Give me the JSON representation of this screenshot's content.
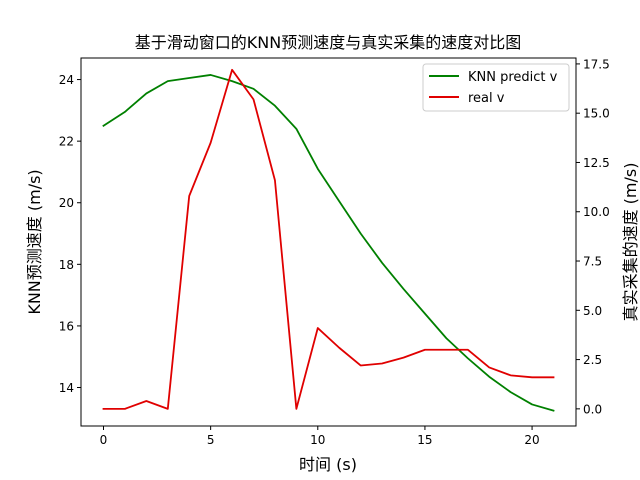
{
  "chart_data": {
    "type": "line",
    "title": "基于滑动窗口的KNN预测速度与真实采集的速度对比图",
    "xlabel": "时间 (s)",
    "ylabel_left": "KNN预测速度 (m/s)",
    "ylabel_right": "真实采集的速度 (m/s)",
    "xlim": [
      -1.05,
      22.05
    ],
    "ylim_left": [
      12.75,
      24.7
    ],
    "ylim_right": [
      -0.87,
      17.8
    ],
    "x_ticks": [
      0,
      5,
      10,
      15,
      20
    ],
    "y_left_ticks": [
      14,
      16,
      18,
      20,
      22,
      24
    ],
    "y_right_ticks": [
      0.0,
      2.5,
      5.0,
      7.5,
      10.0,
      12.5,
      15.0,
      17.5
    ],
    "x_tick_labels": [
      "0",
      "5",
      "10",
      "15",
      "20"
    ],
    "y_left_tick_labels": [
      "14",
      "16",
      "18",
      "20",
      "22",
      "24"
    ],
    "y_right_tick_labels": [
      "0.0",
      "2.5",
      "5.0",
      "7.5",
      "10.0",
      "12.5",
      "15.0",
      "17.5"
    ],
    "grid": false,
    "legend_position": "top-right",
    "x": [
      0,
      1,
      2,
      3,
      4,
      5,
      6,
      7,
      8,
      9,
      10,
      11,
      12,
      13,
      14,
      15,
      16,
      17,
      18,
      19,
      20,
      21
    ],
    "series": [
      {
        "name": "KNN predict v",
        "axis": "left",
        "color": "#008000",
        "values": [
          22.5,
          22.95,
          23.55,
          23.95,
          24.05,
          24.15,
          23.95,
          23.7,
          23.15,
          22.4,
          21.1,
          20.05,
          19.0,
          18.05,
          17.2,
          16.4,
          15.6,
          14.95,
          14.35,
          13.85,
          13.45,
          13.25
        ]
      },
      {
        "name": "real v",
        "axis": "right",
        "color": "#e00000",
        "values": [
          0.0,
          0.0,
          0.4,
          0.0,
          10.8,
          13.5,
          17.2,
          15.7,
          11.6,
          0.0,
          4.1,
          3.1,
          2.2,
          2.3,
          2.6,
          3.0,
          3.0,
          3.0,
          2.1,
          1.7,
          1.6,
          1.6
        ]
      }
    ]
  }
}
